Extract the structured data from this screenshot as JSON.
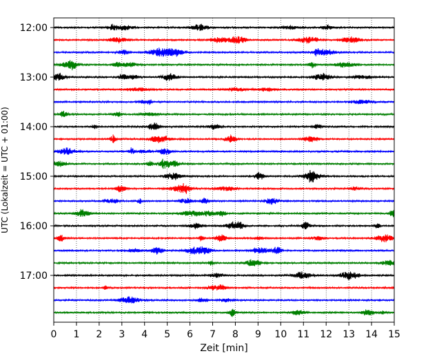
{
  "chart_data": {
    "type": "line",
    "title": "",
    "xlabel": "Zeit  [min]",
    "ylabel": "UTC (Lokalzeit = UTC + 01:00)",
    "xlim": [
      0,
      15
    ],
    "x_ticks": [
      "0",
      "1",
      "2",
      "3",
      "4",
      "5",
      "6",
      "7",
      "8",
      "9",
      "10",
      "11",
      "12",
      "13",
      "14",
      "15"
    ],
    "y_ticks": [
      "12:00",
      "13:00",
      "14:00",
      "15:00",
      "16:00",
      "17:00"
    ],
    "grid": "vertical dotted at each minute",
    "trace_interval_minutes": 15,
    "trace_colors": [
      "#000000",
      "#ff0000",
      "#0000ff",
      "#007f00"
    ],
    "traces": [
      {
        "start": "12:00",
        "color": "#000000"
      },
      {
        "start": "12:15",
        "color": "#ff0000"
      },
      {
        "start": "12:30",
        "color": "#0000ff"
      },
      {
        "start": "12:45",
        "color": "#007f00"
      },
      {
        "start": "13:00",
        "color": "#000000"
      },
      {
        "start": "13:15",
        "color": "#ff0000"
      },
      {
        "start": "13:30",
        "color": "#0000ff"
      },
      {
        "start": "13:45",
        "color": "#007f00"
      },
      {
        "start": "14:00",
        "color": "#000000"
      },
      {
        "start": "14:15",
        "color": "#ff0000"
      },
      {
        "start": "14:30",
        "color": "#0000ff"
      },
      {
        "start": "14:45",
        "color": "#007f00"
      },
      {
        "start": "15:00",
        "color": "#000000"
      },
      {
        "start": "15:15",
        "color": "#ff0000"
      },
      {
        "start": "15:30",
        "color": "#0000ff"
      },
      {
        "start": "15:45",
        "color": "#007f00"
      },
      {
        "start": "16:00",
        "color": "#000000"
      },
      {
        "start": "16:15",
        "color": "#ff0000"
      },
      {
        "start": "16:30",
        "color": "#0000ff"
      },
      {
        "start": "16:45",
        "color": "#007f00"
      },
      {
        "start": "17:00",
        "color": "#000000"
      },
      {
        "start": "17:15",
        "color": "#ff0000"
      },
      {
        "start": "17:30",
        "color": "#0000ff"
      },
      {
        "start": "17:45",
        "color": "#007f00"
      }
    ]
  }
}
